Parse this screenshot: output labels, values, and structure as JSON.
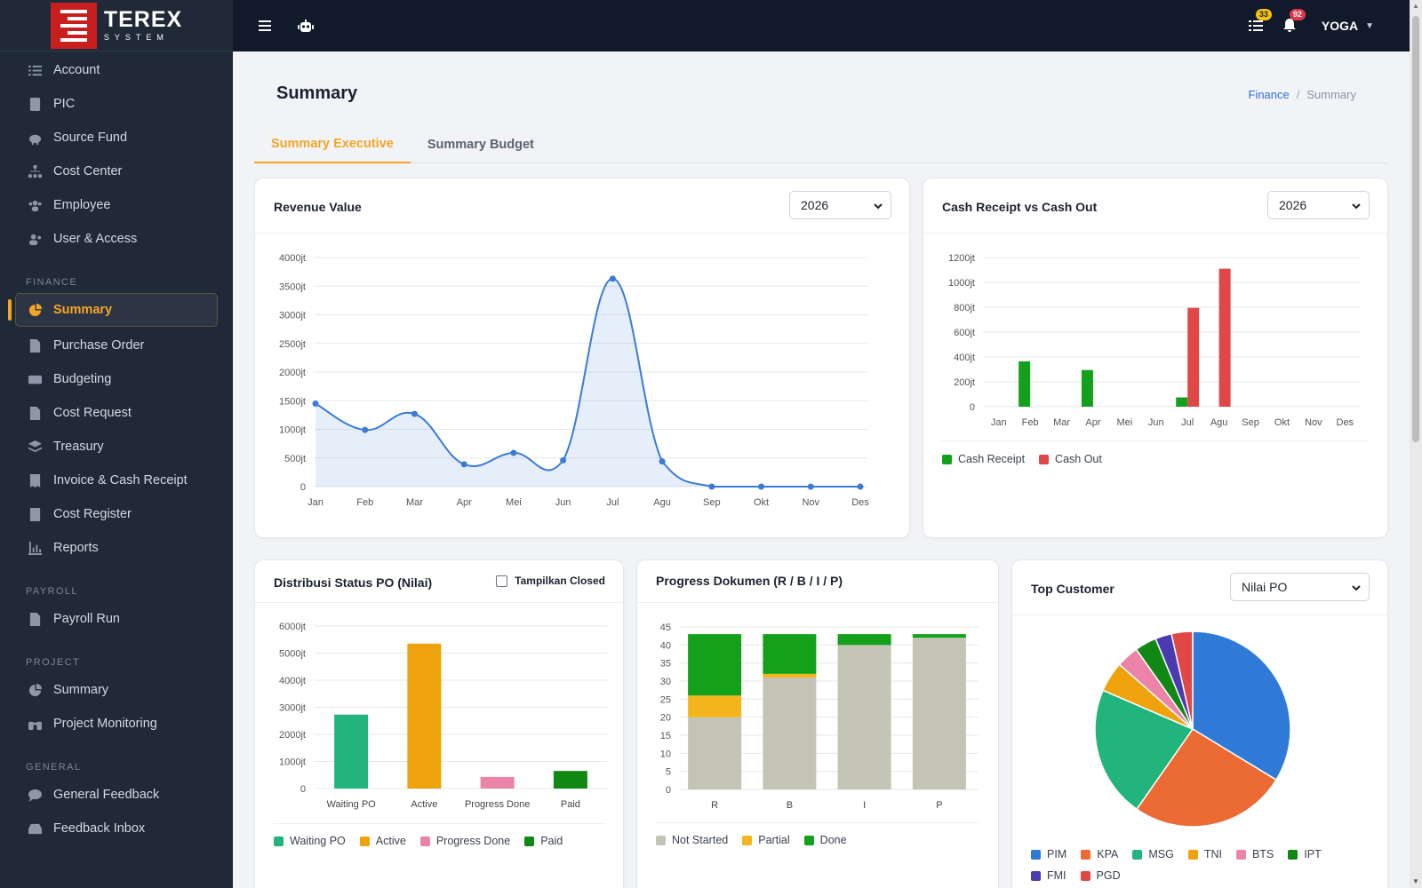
{
  "brand": {
    "name": "TEREX",
    "sub": "SYSTEM"
  },
  "sidebar": {
    "items_top": [
      {
        "label": "Account",
        "icon": "list-icon"
      },
      {
        "label": "PIC",
        "icon": "id-card-icon"
      },
      {
        "label": "Source Fund",
        "icon": "piggy-bank-icon"
      },
      {
        "label": "Cost Center",
        "icon": "sitemap-icon"
      },
      {
        "label": "Employee",
        "icon": "users-icon"
      },
      {
        "label": "User & Access",
        "icon": "users-cog-icon"
      }
    ],
    "finance_label": "FINANCE",
    "finance_items": [
      {
        "label": "Summary",
        "icon": "pie-chart-icon",
        "active": true
      },
      {
        "label": "Purchase Order",
        "icon": "file-icon"
      },
      {
        "label": "Budgeting",
        "icon": "money-icon"
      },
      {
        "label": "Cost Request",
        "icon": "file-invoice-icon"
      },
      {
        "label": "Treasury",
        "icon": "layers-icon"
      },
      {
        "label": "Invoice & Cash Receipt",
        "icon": "receipt-icon"
      },
      {
        "label": "Cost Register",
        "icon": "book-icon"
      },
      {
        "label": "Reports",
        "icon": "bar-chart-icon"
      }
    ],
    "payroll_label": "PAYROLL",
    "payroll_items": [
      {
        "label": "Payroll Run",
        "icon": "file-dollar-icon"
      }
    ],
    "project_label": "PROJECT",
    "project_items": [
      {
        "label": "Summary",
        "icon": "pie-chart-icon"
      },
      {
        "label": "Project Monitoring",
        "icon": "binoculars-icon"
      }
    ],
    "general_label": "GENERAL",
    "general_items": [
      {
        "label": "General Feedback",
        "icon": "comment-icon"
      },
      {
        "label": "Feedback Inbox",
        "icon": "inbox-icon"
      }
    ]
  },
  "topbar": {
    "tasks_count": "33",
    "notif_count": "92",
    "username": "YOGA"
  },
  "page": {
    "title": "Summary",
    "breadcrumb_parent": "Finance",
    "breadcrumb_sep": "/",
    "breadcrumb_current": "Summary",
    "tabs": [
      "Summary Executive",
      "Summary Budget"
    ]
  },
  "cards": {
    "revenue": {
      "title": "Revenue Value",
      "year": "2026"
    },
    "cash": {
      "title": "Cash Receipt vs Cash Out",
      "year": "2026"
    },
    "distribusi": {
      "title": "Distribusi Status PO (Nilai)",
      "checkbox_label": "Tampilkan Closed"
    },
    "progress": {
      "title": "Progress Dokumen (R / B / I / P)"
    },
    "top_customer": {
      "title": "Top Customer",
      "metric": "Nilai PO"
    }
  },
  "colors": {
    "accent": "#f5a524",
    "line": "#3a7bd5",
    "cash_receipt": "#14a01c",
    "cash_out": "#e04848",
    "waiting_po": "#21b47c",
    "active": "#eea20c",
    "progress_done": "#ec83a8",
    "paid": "#118714",
    "not_started": "#c4c4b6",
    "partial": "#f4b51c",
    "done": "#13a01a"
  },
  "chart_data": [
    {
      "type": "line",
      "title": "Revenue Value",
      "x": [
        "Jan",
        "Feb",
        "Mar",
        "Apr",
        "Mei",
        "Jun",
        "Jul",
        "Agu",
        "Sep",
        "Okt",
        "Nov",
        "Des"
      ],
      "y": [
        1450,
        990,
        1270,
        390,
        590,
        460,
        3630,
        440,
        0,
        0,
        0,
        0
      ],
      "ylim": [
        0,
        4000
      ],
      "yticks": [
        "0",
        "500jt",
        "1000jt",
        "1500jt",
        "2000jt",
        "2500jt",
        "3000jt",
        "3500jt",
        "4000jt"
      ],
      "grid": true
    },
    {
      "type": "bar",
      "title": "Cash Receipt vs Cash Out",
      "categories": [
        "Jan",
        "Feb",
        "Mar",
        "Apr",
        "Mei",
        "Jun",
        "Jul",
        "Agu",
        "Sep",
        "Okt",
        "Nov",
        "Des"
      ],
      "series": [
        {
          "name": "Cash Receipt",
          "values": [
            0,
            365,
            0,
            295,
            0,
            0,
            75,
            0,
            0,
            0,
            0,
            0
          ]
        },
        {
          "name": "Cash Out",
          "values": [
            0,
            0,
            0,
            0,
            0,
            0,
            795,
            1110,
            0,
            0,
            0,
            0
          ]
        }
      ],
      "ylim": [
        0,
        1200
      ],
      "yticks": [
        "0",
        "200jt",
        "400jt",
        "600jt",
        "800jt",
        "1000jt",
        "1200jt"
      ],
      "legend": "bottom-left"
    },
    {
      "type": "bar",
      "title": "Distribusi Status PO (Nilai)",
      "categories": [
        "Waiting PO",
        "Active",
        "Progress Done",
        "Paid"
      ],
      "values": [
        2730,
        5350,
        430,
        650
      ],
      "ylim": [
        0,
        6000
      ],
      "yticks": [
        "0",
        "1000jt",
        "2000jt",
        "3000jt",
        "4000jt",
        "5000jt",
        "6000jt"
      ],
      "legend": "bottom-left"
    },
    {
      "type": "bar",
      "stacked": true,
      "title": "Progress Dokumen (R / B / I / P)",
      "categories": [
        "R",
        "B",
        "I",
        "P"
      ],
      "series": [
        {
          "name": "Not Started",
          "values": [
            20,
            31,
            40,
            42
          ]
        },
        {
          "name": "Partial",
          "values": [
            6,
            1,
            0,
            0
          ]
        },
        {
          "name": "Done",
          "values": [
            17,
            11,
            3,
            1
          ]
        }
      ],
      "ylim": [
        0,
        45
      ],
      "yticks": [
        "0",
        "5",
        "10",
        "15",
        "20",
        "25",
        "30",
        "35",
        "40",
        "45"
      ],
      "legend": "bottom-left"
    },
    {
      "type": "pie",
      "title": "Top Customer",
      "categories": [
        "PIM",
        "KPA",
        "MSG",
        "TNI",
        "BTS",
        "IPT",
        "FMI",
        "PGD"
      ],
      "values": [
        33.7,
        26.0,
        21.8,
        5.0,
        3.7,
        3.6,
        2.7,
        3.5
      ],
      "legend": "bottom"
    }
  ]
}
